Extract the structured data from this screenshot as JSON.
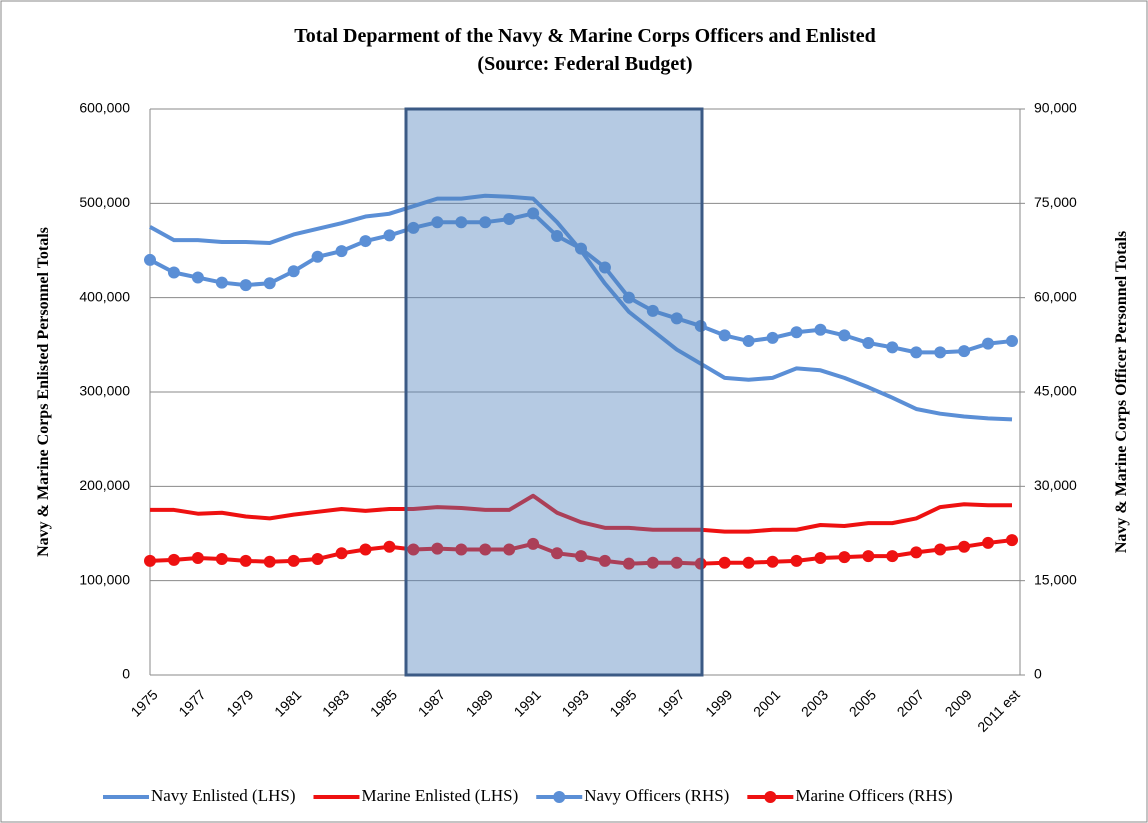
{
  "chart_data": {
    "type": "line",
    "title": "Total Deparment of the Navy & Marine Corps Officers and Enlisted",
    "subtitle": "(Source: Federal Budget)",
    "ylabel": "Navy & Marine  Corps Enlisted  Personnel Totals",
    "y2label": "Navy & Marine Corps Officer Personnel Totals",
    "categories": [
      "1975",
      null,
      "1977",
      null,
      "1979",
      null,
      "1981",
      null,
      "1983",
      null,
      "1985",
      null,
      "1987",
      null,
      "1989",
      null,
      "1991",
      null,
      "1993",
      null,
      "1995",
      null,
      "1997",
      null,
      "1999",
      null,
      "2001",
      null,
      "2003",
      null,
      "2005",
      null,
      "2007",
      null,
      "2009",
      null,
      "2011 est"
    ],
    "ylim": [
      0,
      600000
    ],
    "yticks": [
      0,
      {
        "value": 100000,
        "label": "100,000"
      },
      {
        "value": 200000,
        "label": "200,000"
      },
      {
        "value": 300000,
        "label": "300,000"
      },
      {
        "value": 400000,
        "label": "400,000"
      },
      {
        "value": 500000,
        "label": "500,000"
      },
      {
        "value": 600000,
        "label": "600,000"
      }
    ],
    "y2lim": [
      0,
      90000
    ],
    "y2ticks": [
      0,
      {
        "value": 15000,
        "label": "15,000"
      },
      {
        "value": 30000,
        "label": "30,000"
      },
      {
        "value": 45000,
        "label": "45,000"
      },
      {
        "value": 60000,
        "label": "60,000"
      },
      {
        "value": 75000,
        "label": "75,000"
      },
      {
        "value": 90000,
        "label": "90,000"
      }
    ],
    "grid": true,
    "legend": "bottom",
    "series": [
      {
        "name": "Navy Enlisted (LHS)",
        "color": "#5b8fd6",
        "markers": false,
        "values": [
          475000,
          461000,
          461000,
          459000,
          459000,
          458000,
          467000,
          473000,
          479000,
          486000,
          489000,
          497000,
          505000,
          505000,
          508000,
          507000,
          505000,
          480000,
          450000,
          415000,
          385000,
          365000,
          345000,
          330000,
          315000,
          313000,
          315000,
          325000,
          323000,
          315000,
          305000,
          294000,
          282000,
          277000,
          274000,
          272000,
          271000
        ]
      },
      {
        "name": "Marine Enlisted (LHS)",
        "color": "#ee1111",
        "markers": false,
        "values": [
          175000,
          175000,
          171000,
          172000,
          168000,
          166000,
          170000,
          173000,
          176000,
          174000,
          176000,
          176000,
          178000,
          177000,
          175000,
          175000,
          190000,
          172000,
          162000,
          156000,
          156000,
          154000,
          154000,
          154000,
          152000,
          152000,
          154000,
          154000,
          159000,
          158000,
          161000,
          161000,
          166000,
          178000,
          181000,
          180000,
          180000
        ]
      },
      {
        "name": "Navy Officers (RHS)",
        "color": "#5b8fd6",
        "markers": true,
        "axis": "y2",
        "values": [
          66000,
          64000,
          63200,
          62400,
          62000,
          62300,
          64200,
          66500,
          67400,
          69000,
          69900,
          71100,
          72000,
          72000,
          72000,
          72500,
          73400,
          69800,
          67800,
          64800,
          60000,
          57900,
          56700,
          55500,
          54000,
          53100,
          53600,
          54500,
          54900,
          54000,
          52800,
          52100,
          51300,
          51300,
          51500,
          52700,
          53100
        ]
      },
      {
        "name": "Marine Officers (RHS)",
        "color": "#ee1111",
        "markers": true,
        "axis": "y2",
        "values": [
          18150,
          18300,
          18600,
          18450,
          18150,
          18000,
          18150,
          18450,
          19350,
          19950,
          20400,
          19950,
          20100,
          19950,
          19950,
          19950,
          20850,
          19350,
          18900,
          18150,
          17700,
          17850,
          17850,
          17700,
          17850,
          17850,
          18000,
          18150,
          18600,
          18750,
          18900,
          18900,
          19500,
          19950,
          20400,
          21000,
          21450
        ]
      }
    ]
  }
}
